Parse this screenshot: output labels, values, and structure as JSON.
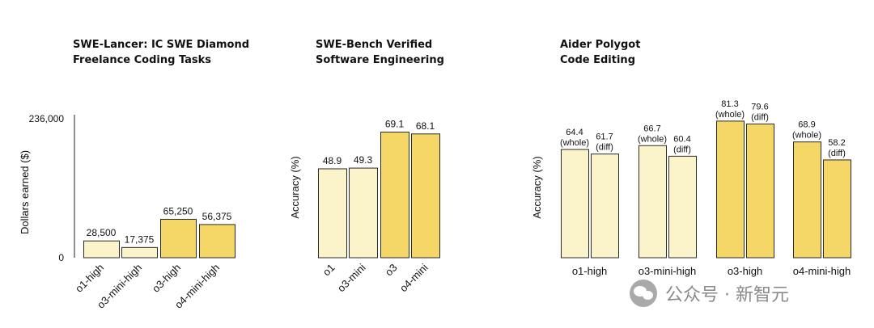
{
  "chart_data": [
    {
      "type": "bar",
      "title": [
        "SWE-Lancer: IC SWE Diamond",
        "Freelance Coding Tasks"
      ],
      "ylabel": "Dollars earned ($)",
      "ylim": [
        0,
        236000
      ],
      "yticks": [
        "236,000",
        "0"
      ],
      "categories": [
        "o1-high",
        "o3-mini-high",
        "o3-high",
        "o4-mini-high"
      ],
      "values": [
        28500,
        17375,
        65250,
        56375
      ],
      "value_labels": [
        "28,500",
        "17,375",
        "65,250",
        "56,375"
      ],
      "bar_colors": [
        "#fbf3ca",
        "#fbf3ca",
        "#f5d767",
        "#f5d767"
      ]
    },
    {
      "type": "bar",
      "title": [
        "SWE-Bench Verified",
        "Software Engineering"
      ],
      "ylabel": "Accuracy (%)",
      "ylim": [
        0,
        100
      ],
      "categories": [
        "o1",
        "o3-mini",
        "o3",
        "o4-mini"
      ],
      "values": [
        48.9,
        49.3,
        69.1,
        68.1
      ],
      "value_labels": [
        "48.9",
        "49.3",
        "69.1",
        "68.1"
      ],
      "bar_colors": [
        "#fbf3ca",
        "#fbf3ca",
        "#f5d767",
        "#f5d767"
      ]
    },
    {
      "type": "bar",
      "title": [
        "Aider Polygot",
        "Code Editing"
      ],
      "ylabel": "Accuracy (%)",
      "ylim": [
        0,
        100
      ],
      "categories": [
        "o1-high",
        "o3-mini-high",
        "o3-high",
        "o4-mini-high"
      ],
      "series": [
        {
          "name": "(whole)",
          "values": [
            64.4,
            66.7,
            81.3,
            68.9
          ]
        },
        {
          "name": "(diff)",
          "values": [
            61.7,
            60.4,
            79.6,
            58.2
          ]
        }
      ],
      "group_colors": [
        "#fbf3ca",
        "#fbf3ca",
        "#f5d767",
        "#f5d767"
      ]
    }
  ],
  "colors": {
    "light_bar": "#fbf3ca",
    "dark_bar": "#f5d767",
    "bar_stroke": "#2a2a2a"
  },
  "watermark": {
    "text": "公众号 · 新智元",
    "icon": "wechat-icon"
  }
}
